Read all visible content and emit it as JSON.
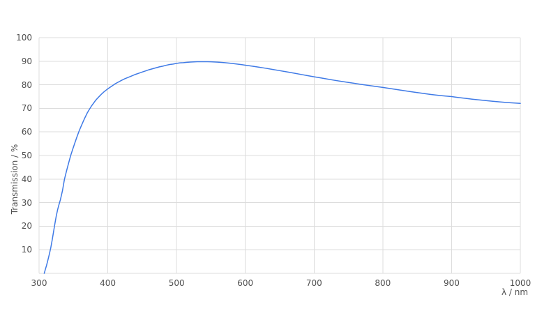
{
  "chart_data": {
    "type": "line",
    "title": "",
    "xlabel": "λ / nm",
    "ylabel": "Transmission / %",
    "xlim": [
      300,
      1000
    ],
    "ylim": [
      0,
      100
    ],
    "x_ticks": [
      300,
      400,
      500,
      600,
      700,
      800,
      900,
      1000
    ],
    "y_ticks": [
      10,
      20,
      30,
      40,
      50,
      60,
      70,
      80,
      90,
      100
    ],
    "y_gridlines": [
      0,
      10,
      20,
      30,
      40,
      50,
      60,
      70,
      80,
      90,
      100
    ],
    "grid": true,
    "legend": "none",
    "series": [
      {
        "name": "Transmission",
        "color": "#3f7ae6",
        "points": [
          [
            307.5,
            0
          ],
          [
            309,
            1.5
          ],
          [
            311,
            3.5
          ],
          [
            313,
            5.8
          ],
          [
            315,
            8.2
          ],
          [
            317,
            10.8
          ],
          [
            319,
            14
          ],
          [
            321,
            17.5
          ],
          [
            323,
            21
          ],
          [
            325,
            24.3
          ],
          [
            327,
            27
          ],
          [
            329,
            29.2
          ],
          [
            331,
            31.2
          ],
          [
            334,
            35
          ],
          [
            337,
            40
          ],
          [
            340,
            43.5
          ],
          [
            343,
            46.8
          ],
          [
            346,
            50
          ],
          [
            349,
            52.7
          ],
          [
            352,
            55.3
          ],
          [
            355,
            57.8
          ],
          [
            358,
            60.2
          ],
          [
            361,
            62.3
          ],
          [
            364,
            64.3
          ],
          [
            367,
            66.2
          ],
          [
            370,
            68
          ],
          [
            373,
            69.5
          ],
          [
            376,
            70.9
          ],
          [
            379,
            72.1
          ],
          [
            382,
            73.3
          ],
          [
            385,
            74.3
          ],
          [
            388,
            75.2
          ],
          [
            391,
            76.1
          ],
          [
            394,
            76.9
          ],
          [
            397,
            77.6
          ],
          [
            400,
            78.3
          ],
          [
            405,
            79.3
          ],
          [
            410,
            80.3
          ],
          [
            415,
            81.1
          ],
          [
            420,
            81.9
          ],
          [
            425,
            82.6
          ],
          [
            430,
            83.2
          ],
          [
            435,
            83.8
          ],
          [
            440,
            84.4
          ],
          [
            445,
            84.9
          ],
          [
            450,
            85.4
          ],
          [
            455,
            85.9
          ],
          [
            460,
            86.4
          ],
          [
            465,
            86.8
          ],
          [
            470,
            87.2
          ],
          [
            475,
            87.6
          ],
          [
            480,
            87.9
          ],
          [
            485,
            88.3
          ],
          [
            490,
            88.6
          ],
          [
            495,
            88.8
          ],
          [
            500,
            89.1
          ],
          [
            505,
            89.3
          ],
          [
            510,
            89.4
          ],
          [
            515,
            89.55
          ],
          [
            520,
            89.65
          ],
          [
            525,
            89.72
          ],
          [
            530,
            89.78
          ],
          [
            535,
            89.8
          ],
          [
            540,
            89.8
          ],
          [
            545,
            89.78
          ],
          [
            550,
            89.74
          ],
          [
            555,
            89.68
          ],
          [
            560,
            89.6
          ],
          [
            565,
            89.5
          ],
          [
            570,
            89.38
          ],
          [
            575,
            89.24
          ],
          [
            580,
            89.08
          ],
          [
            585,
            88.9
          ],
          [
            590,
            88.72
          ],
          [
            595,
            88.52
          ],
          [
            600,
            88.3
          ],
          [
            610,
            87.9
          ],
          [
            620,
            87.45
          ],
          [
            630,
            87
          ],
          [
            640,
            86.5
          ],
          [
            650,
            86
          ],
          [
            660,
            85.5
          ],
          [
            670,
            85
          ],
          [
            680,
            84.45
          ],
          [
            690,
            83.9
          ],
          [
            700,
            83.4
          ],
          [
            710,
            82.9
          ],
          [
            720,
            82.4
          ],
          [
            730,
            81.9
          ],
          [
            740,
            81.45
          ],
          [
            750,
            81
          ],
          [
            760,
            80.55
          ],
          [
            770,
            80.1
          ],
          [
            780,
            79.7
          ],
          [
            790,
            79.3
          ],
          [
            800,
            78.9
          ],
          [
            810,
            78.45
          ],
          [
            820,
            78
          ],
          [
            830,
            77.55
          ],
          [
            840,
            77.1
          ],
          [
            850,
            76.7
          ],
          [
            860,
            76.3
          ],
          [
            870,
            75.9
          ],
          [
            880,
            75.55
          ],
          [
            890,
            75.25
          ],
          [
            900,
            75
          ],
          [
            910,
            74.6
          ],
          [
            920,
            74.25
          ],
          [
            930,
            73.9
          ],
          [
            940,
            73.6
          ],
          [
            950,
            73.3
          ],
          [
            960,
            73
          ],
          [
            970,
            72.75
          ],
          [
            980,
            72.5
          ],
          [
            990,
            72.3
          ],
          [
            1000,
            72.1
          ]
        ]
      }
    ]
  },
  "style": {
    "line_color": "#3f7ae6",
    "grid_color": "#dcdcdc",
    "text_color": "#4f4f4f",
    "background": "#ffffff"
  }
}
